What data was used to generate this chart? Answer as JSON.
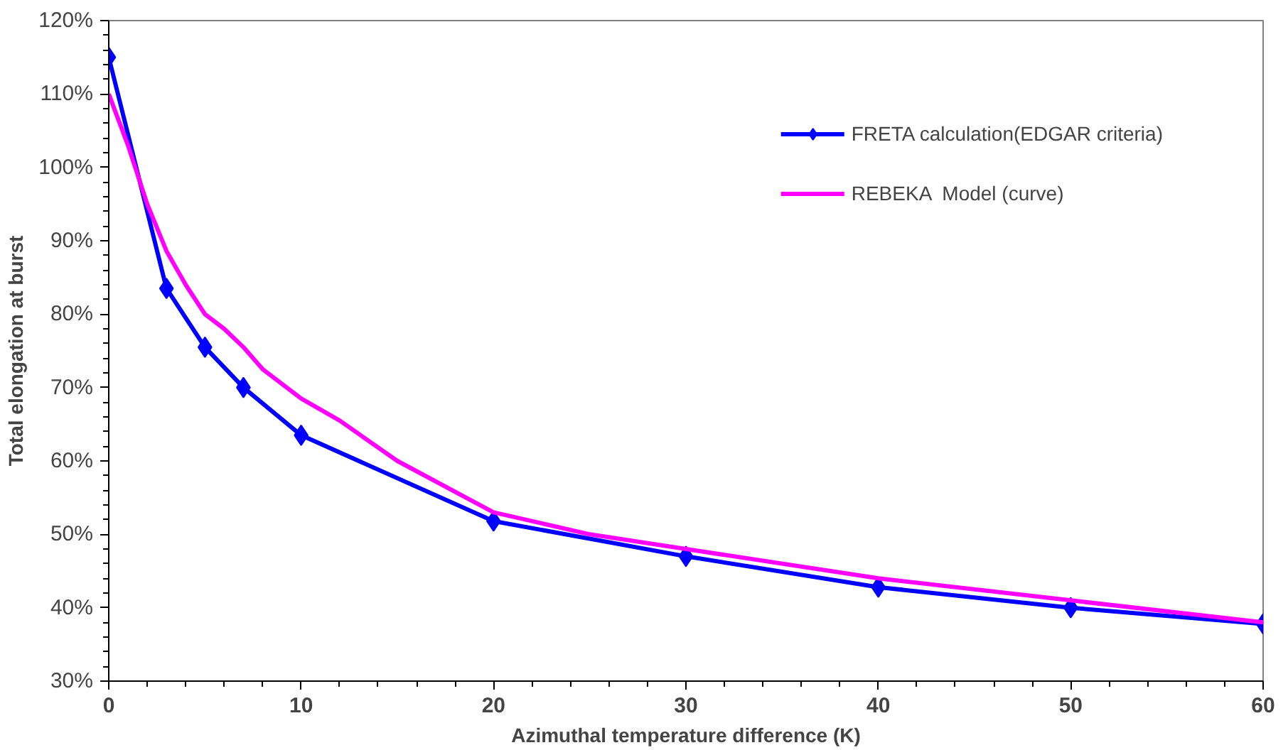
{
  "chart_data": {
    "type": "line",
    "xlabel": "Azimuthal temperature difference (K)",
    "ylabel": "Total elongation at burst",
    "xlim": [
      0,
      60
    ],
    "xticks": [
      0,
      10,
      20,
      30,
      40,
      50,
      60
    ],
    "ylim": [
      30,
      120
    ],
    "yticks": [
      {
        "value": 30,
        "label": "30%"
      },
      {
        "value": 40,
        "label": "40%"
      },
      {
        "value": 50,
        "label": "50%"
      },
      {
        "value": 60,
        "label": "60%"
      },
      {
        "value": 70,
        "label": "70%"
      },
      {
        "value": 80,
        "label": "80%"
      },
      {
        "value": 90,
        "label": "90%"
      },
      {
        "value": 100,
        "label": "100%"
      },
      {
        "value": 110,
        "label": "110%"
      },
      {
        "value": 120,
        "label": "120%"
      }
    ],
    "grid": false,
    "legend": "top right",
    "series": [
      {
        "name": "FRETA calculation(EDGAR criteria)",
        "color": "#0000ff",
        "marker": "diamond",
        "x": [
          0,
          3,
          5,
          7,
          10,
          20,
          30,
          40,
          50,
          60
        ],
        "values": [
          115,
          83.5,
          75.5,
          70,
          63.5,
          51.8,
          47,
          42.8,
          40,
          37.8
        ]
      },
      {
        "name": "REBEKA  Model (curve)",
        "color": "#ff00ff",
        "marker": "none",
        "x": [
          0,
          1,
          2,
          3,
          4,
          5,
          6,
          7,
          8,
          10,
          12,
          15,
          20,
          25,
          30,
          40,
          50,
          60
        ],
        "values": [
          110,
          103,
          95,
          88.6,
          84,
          80,
          78,
          75.5,
          72.5,
          68.5,
          65.5,
          60,
          53,
          50,
          48,
          44,
          41,
          38
        ]
      }
    ]
  }
}
